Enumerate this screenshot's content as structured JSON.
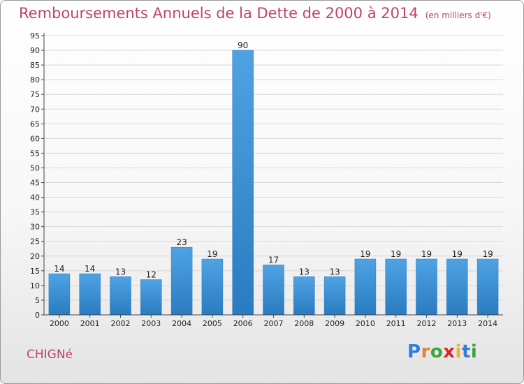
{
  "title": "Remboursements Annuels de la Dette de 2000 à 2014",
  "unit": "(en milliers d'€)",
  "commune": "CHIGNé",
  "logo": {
    "letters": [
      "P",
      "r",
      "o",
      "x",
      "i",
      "t",
      "i"
    ],
    "colors": [
      "#2e7fd6",
      "#e8812a",
      "#3aa63a",
      "#d92a2a",
      "#f0b32a",
      "#2e7fd6",
      "#3aa63a"
    ]
  },
  "colors": {
    "title": "#c2416e",
    "bar": "#4fa3e3",
    "bar_dark": "#2a7bc0",
    "axis": "#444444",
    "grid": "#d8d8d8"
  },
  "chart_data": {
    "type": "bar",
    "categories": [
      "2000",
      "2001",
      "2002",
      "2003",
      "2004",
      "2005",
      "2006",
      "2007",
      "2008",
      "2009",
      "2010",
      "2011",
      "2012",
      "2013",
      "2014"
    ],
    "values": [
      14,
      14,
      13,
      12,
      23,
      19,
      90,
      17,
      13,
      13,
      19,
      19,
      19,
      19,
      19
    ],
    "title": "Remboursements Annuels de la Dette de 2000 à 2014",
    "ylim": [
      0,
      95
    ],
    "yticks": [
      0,
      5,
      10,
      15,
      20,
      25,
      30,
      35,
      40,
      45,
      50,
      55,
      60,
      65,
      70,
      75,
      80,
      85,
      90,
      95
    ],
    "grid": true
  }
}
